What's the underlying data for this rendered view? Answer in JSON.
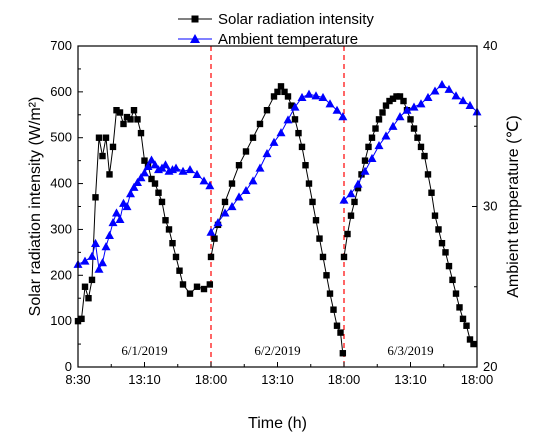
{
  "chart_data": {
    "type": "line",
    "title": "",
    "xlabel": "Time (h)",
    "ylabel_left": "Solar radiation intensity (W/m²)",
    "ylabel_right": "Ambient temperature (℃)",
    "x_tick_labels": [
      "8:30",
      "13:10",
      "18:00",
      "13:10",
      "18:00",
      "13:10",
      "18:00"
    ],
    "y_left_ticks": [
      0,
      100,
      200,
      300,
      400,
      500,
      600,
      700
    ],
    "y_right_ticks": [
      20,
      30,
      40
    ],
    "y_left_range": [
      0,
      700
    ],
    "y_right_range": [
      20,
      40
    ],
    "grid": false,
    "legend_position": "top",
    "day_separators_x": [
      "6/1/2019 18:00",
      "6/2/2019 18:00"
    ],
    "day_labels": [
      "6/1/2019",
      "6/2/2019",
      "6/3/2019"
    ],
    "series": [
      {
        "name": "Solar radiation intensity",
        "axis": "left",
        "color": "#000000",
        "marker": "square",
        "points": [
          [
            "6/1/2019 08:30",
            100
          ],
          [
            "6/1/2019 08:45",
            105
          ],
          [
            "6/1/2019 09:00",
            175
          ],
          [
            "6/1/2019 09:15",
            150
          ],
          [
            "6/1/2019 09:30",
            190
          ],
          [
            "6/1/2019 09:45",
            370
          ],
          [
            "6/1/2019 10:00",
            500
          ],
          [
            "6/1/2019 10:15",
            460
          ],
          [
            "6/1/2019 10:30",
            500
          ],
          [
            "6/1/2019 10:45",
            420
          ],
          [
            "6/1/2019 11:00",
            480
          ],
          [
            "6/1/2019 11:15",
            560
          ],
          [
            "6/1/2019 11:30",
            555
          ],
          [
            "6/1/2019 11:45",
            530
          ],
          [
            "6/1/2019 12:00",
            545
          ],
          [
            "6/1/2019 12:15",
            540
          ],
          [
            "6/1/2019 12:30",
            560
          ],
          [
            "6/1/2019 12:45",
            540
          ],
          [
            "6/1/2019 13:00",
            510
          ],
          [
            "6/1/2019 13:15",
            450
          ],
          [
            "6/1/2019 13:30",
            440
          ],
          [
            "6/1/2019 13:45",
            410
          ],
          [
            "6/1/2019 14:00",
            400
          ],
          [
            "6/1/2019 14:15",
            380
          ],
          [
            "6/1/2019 14:30",
            360
          ],
          [
            "6/1/2019 14:45",
            320
          ],
          [
            "6/1/2019 15:00",
            300
          ],
          [
            "6/1/2019 15:15",
            270
          ],
          [
            "6/1/2019 15:30",
            240
          ],
          [
            "6/1/2019 15:45",
            210
          ],
          [
            "6/1/2019 16:00",
            180
          ],
          [
            "6/1/2019 16:30",
            160
          ],
          [
            "6/1/2019 17:00",
            175
          ],
          [
            "6/1/2019 17:30",
            170
          ],
          [
            "6/1/2019 17:55",
            180
          ],
          [
            "6/2/2019 08:30",
            240
          ],
          [
            "6/2/2019 08:45",
            280
          ],
          [
            "6/2/2019 09:00",
            310
          ],
          [
            "6/2/2019 09:30",
            360
          ],
          [
            "6/2/2019 10:00",
            400
          ],
          [
            "6/2/2019 10:30",
            440
          ],
          [
            "6/2/2019 11:00",
            470
          ],
          [
            "6/2/2019 11:30",
            500
          ],
          [
            "6/2/2019 12:00",
            530
          ],
          [
            "6/2/2019 12:30",
            560
          ],
          [
            "6/2/2019 13:00",
            590
          ],
          [
            "6/2/2019 13:15",
            600
          ],
          [
            "6/2/2019 13:30",
            612
          ],
          [
            "6/2/2019 13:45",
            600
          ],
          [
            "6/2/2019 14:00",
            590
          ],
          [
            "6/2/2019 14:15",
            570
          ],
          [
            "6/2/2019 14:30",
            540
          ],
          [
            "6/2/2019 14:45",
            510
          ],
          [
            "6/2/2019 15:00",
            480
          ],
          [
            "6/2/2019 15:15",
            440
          ],
          [
            "6/2/2019 15:30",
            400
          ],
          [
            "6/2/2019 15:45",
            360
          ],
          [
            "6/2/2019 16:00",
            320
          ],
          [
            "6/2/2019 16:15",
            280
          ],
          [
            "6/2/2019 16:30",
            240
          ],
          [
            "6/2/2019 16:45",
            200
          ],
          [
            "6/2/2019 17:00",
            160
          ],
          [
            "6/2/2019 17:15",
            125
          ],
          [
            "6/2/2019 17:30",
            90
          ],
          [
            "6/2/2019 17:45",
            75
          ],
          [
            "6/2/2019 17:55",
            30
          ],
          [
            "6/3/2019 08:30",
            240
          ],
          [
            "6/3/2019 08:45",
            290
          ],
          [
            "6/3/2019 09:00",
            330
          ],
          [
            "6/3/2019 09:15",
            360
          ],
          [
            "6/3/2019 09:30",
            390
          ],
          [
            "6/3/2019 09:45",
            420
          ],
          [
            "6/3/2019 10:00",
            450
          ],
          [
            "6/3/2019 10:15",
            480
          ],
          [
            "6/3/2019 10:30",
            500
          ],
          [
            "6/3/2019 10:45",
            520
          ],
          [
            "6/3/2019 11:00",
            540
          ],
          [
            "6/3/2019 11:15",
            555
          ],
          [
            "6/3/2019 11:30",
            570
          ],
          [
            "6/3/2019 11:45",
            580
          ],
          [
            "6/3/2019 12:00",
            585
          ],
          [
            "6/3/2019 12:15",
            590
          ],
          [
            "6/3/2019 12:30",
            590
          ],
          [
            "6/3/2019 12:45",
            580
          ],
          [
            "6/3/2019 13:00",
            560
          ],
          [
            "6/3/2019 13:15",
            540
          ],
          [
            "6/3/2019 13:30",
            520
          ],
          [
            "6/3/2019 13:45",
            500
          ],
          [
            "6/3/2019 14:00",
            480
          ],
          [
            "6/3/2019 14:15",
            460
          ],
          [
            "6/3/2019 14:30",
            420
          ],
          [
            "6/3/2019 14:45",
            380
          ],
          [
            "6/3/2019 15:00",
            330
          ],
          [
            "6/3/2019 15:15",
            300
          ],
          [
            "6/3/2019 15:30",
            270
          ],
          [
            "6/3/2019 15:45",
            250
          ],
          [
            "6/3/2019 16:00",
            220
          ],
          [
            "6/3/2019 16:15",
            190
          ],
          [
            "6/3/2019 16:30",
            160
          ],
          [
            "6/3/2019 16:45",
            130
          ],
          [
            "6/3/2019 17:00",
            105
          ],
          [
            "6/3/2019 17:15",
            90
          ],
          [
            "6/3/2019 17:30",
            60
          ],
          [
            "6/3/2019 17:45",
            50
          ]
        ]
      },
      {
        "name": "Ambient temperature",
        "axis": "right",
        "color": "#0000ff",
        "marker": "triangle",
        "points": [
          [
            "6/1/2019 08:30",
            26.4
          ],
          [
            "6/1/2019 09:00",
            26.6
          ],
          [
            "6/1/2019 09:30",
            26.9
          ],
          [
            "6/1/2019 09:45",
            27.7
          ],
          [
            "6/1/2019 10:00",
            26.1
          ],
          [
            "6/1/2019 10:15",
            26.5
          ],
          [
            "6/1/2019 10:30",
            27.5
          ],
          [
            "6/1/2019 10:45",
            28.2
          ],
          [
            "6/1/2019 11:00",
            29.0
          ],
          [
            "6/1/2019 11:15",
            29.6
          ],
          [
            "6/1/2019 11:30",
            29.2
          ],
          [
            "6/1/2019 11:45",
            30.2
          ],
          [
            "6/1/2019 12:00",
            30.0
          ],
          [
            "6/1/2019 12:15",
            30.8
          ],
          [
            "6/1/2019 12:30",
            31.2
          ],
          [
            "6/1/2019 12:45",
            31.5
          ],
          [
            "6/1/2019 13:00",
            31.8
          ],
          [
            "6/1/2019 13:15",
            32.1
          ],
          [
            "6/1/2019 13:30",
            32.5
          ],
          [
            "6/1/2019 13:45",
            32.9
          ],
          [
            "6/1/2019 14:00",
            32.6
          ],
          [
            "6/1/2019 14:15",
            32.3
          ],
          [
            "6/1/2019 14:30",
            32.4
          ],
          [
            "6/1/2019 14:45",
            32.6
          ],
          [
            "6/1/2019 15:00",
            32.2
          ],
          [
            "6/1/2019 15:15",
            32.3
          ],
          [
            "6/1/2019 15:30",
            32.4
          ],
          [
            "6/1/2019 16:00",
            32.2
          ],
          [
            "6/1/2019 16:30",
            32.3
          ],
          [
            "6/1/2019 17:00",
            32.0
          ],
          [
            "6/1/2019 17:30",
            31.6
          ],
          [
            "6/1/2019 17:55",
            31.3
          ],
          [
            "6/2/2019 08:30",
            28.4
          ],
          [
            "6/2/2019 09:00",
            29.0
          ],
          [
            "6/2/2019 09:30",
            29.6
          ],
          [
            "6/2/2019 10:00",
            30.0
          ],
          [
            "6/2/2019 10:30",
            30.6
          ],
          [
            "6/2/2019 11:00",
            31.0
          ],
          [
            "6/2/2019 11:30",
            31.6
          ],
          [
            "6/2/2019 12:00",
            32.4
          ],
          [
            "6/2/2019 12:30",
            33.3
          ],
          [
            "6/2/2019 13:00",
            34.0
          ],
          [
            "6/2/2019 13:30",
            34.6
          ],
          [
            "6/2/2019 14:00",
            35.4
          ],
          [
            "6/2/2019 14:30",
            36.2
          ],
          [
            "6/2/2019 15:00",
            36.8
          ],
          [
            "6/2/2019 15:30",
            37.0
          ],
          [
            "6/2/2019 16:00",
            36.9
          ],
          [
            "6/2/2019 16:30",
            36.8
          ],
          [
            "6/2/2019 17:00",
            36.4
          ],
          [
            "6/2/2019 17:30",
            36.0
          ],
          [
            "6/2/2019 17:55",
            35.6
          ],
          [
            "6/3/2019 08:30",
            30.4
          ],
          [
            "6/3/2019 09:00",
            30.8
          ],
          [
            "6/3/2019 09:30",
            31.4
          ],
          [
            "6/3/2019 10:00",
            32.2
          ],
          [
            "6/3/2019 10:30",
            33.0
          ],
          [
            "6/3/2019 11:00",
            33.8
          ],
          [
            "6/3/2019 11:30",
            34.4
          ],
          [
            "6/3/2019 12:00",
            35.0
          ],
          [
            "6/3/2019 12:30",
            35.6
          ],
          [
            "6/3/2019 13:00",
            36.0
          ],
          [
            "6/3/2019 13:30",
            36.2
          ],
          [
            "6/3/2019 14:00",
            36.4
          ],
          [
            "6/3/2019 14:30",
            36.8
          ],
          [
            "6/3/2019 15:00",
            37.2
          ],
          [
            "6/3/2019 15:30",
            37.6
          ],
          [
            "6/3/2019 16:00",
            37.3
          ],
          [
            "6/3/2019 16:30",
            36.9
          ],
          [
            "6/3/2019 17:00",
            36.6
          ],
          [
            "6/3/2019 17:30",
            36.3
          ],
          [
            "6/3/2019 18:00",
            35.9
          ]
        ]
      }
    ]
  }
}
